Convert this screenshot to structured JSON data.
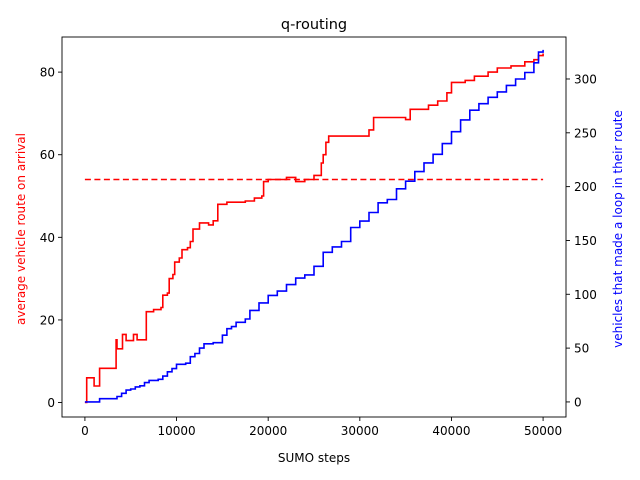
{
  "chart_data": {
    "type": "line",
    "title": "q-routing",
    "xlabel": "SUMO steps",
    "ylabel_left": "average vehicle route on arrival",
    "ylabel_right": "vehicles that made a loop in their route",
    "xlim": [
      -2500,
      52500
    ],
    "ylim_left": [
      -3.5,
      88.5
    ],
    "ylim_right": [
      -14,
      339
    ],
    "x_ticks": [
      0,
      10000,
      20000,
      30000,
      40000,
      50000
    ],
    "y_ticks_left": [
      0,
      20,
      40,
      60,
      80
    ],
    "y_ticks_right": [
      0,
      50,
      100,
      150,
      200,
      250,
      300
    ],
    "colors": {
      "left_axis": "#ff0000",
      "right_axis": "#0000ff"
    },
    "grid": false,
    "series": [
      {
        "axis": "left",
        "color": "#ff0000",
        "style": "step",
        "points": [
          [
            0,
            0
          ],
          [
            200,
            6
          ],
          [
            900,
            6
          ],
          [
            1000,
            4
          ],
          [
            1500,
            4
          ],
          [
            1600,
            8.3
          ],
          [
            3300,
            8.3
          ],
          [
            3400,
            15.2
          ],
          [
            3500,
            13
          ],
          [
            4000,
            13
          ],
          [
            4100,
            16.5
          ],
          [
            4500,
            15
          ],
          [
            5000,
            15
          ],
          [
            5300,
            16.5
          ],
          [
            5700,
            15.2
          ],
          [
            6500,
            15.2
          ],
          [
            6700,
            22
          ],
          [
            7500,
            22.5
          ],
          [
            8300,
            23
          ],
          [
            8500,
            26
          ],
          [
            9000,
            26.5
          ],
          [
            9200,
            30
          ],
          [
            9600,
            31
          ],
          [
            9800,
            34
          ],
          [
            10300,
            35
          ],
          [
            10600,
            37
          ],
          [
            11200,
            37.5
          ],
          [
            11500,
            39
          ],
          [
            11800,
            42
          ],
          [
            12500,
            43.5
          ],
          [
            13500,
            43
          ],
          [
            14000,
            44
          ],
          [
            14500,
            48
          ],
          [
            15500,
            48.5
          ],
          [
            16500,
            48.5
          ],
          [
            17500,
            48.8
          ],
          [
            18500,
            49.5
          ],
          [
            19300,
            50
          ],
          [
            19500,
            53.5
          ],
          [
            20000,
            54
          ],
          [
            21000,
            54
          ],
          [
            22000,
            54.5
          ],
          [
            23000,
            53.5
          ],
          [
            24000,
            54
          ],
          [
            25000,
            55
          ],
          [
            25800,
            58
          ],
          [
            26000,
            60
          ],
          [
            26300,
            63
          ],
          [
            26600,
            64.5
          ],
          [
            28000,
            64.5
          ],
          [
            29500,
            64.5
          ],
          [
            31000,
            66
          ],
          [
            31500,
            69
          ],
          [
            33000,
            69
          ],
          [
            34000,
            69
          ],
          [
            35000,
            68.5
          ],
          [
            35500,
            71
          ],
          [
            36500,
            71
          ],
          [
            37500,
            72
          ],
          [
            38500,
            73
          ],
          [
            39500,
            75
          ],
          [
            40000,
            77.5
          ],
          [
            41500,
            78
          ],
          [
            42500,
            79
          ],
          [
            44000,
            80
          ],
          [
            45000,
            81
          ],
          [
            46500,
            81.5
          ],
          [
            48000,
            82.5
          ],
          [
            49000,
            83
          ],
          [
            49500,
            84
          ],
          [
            50000,
            84.5
          ]
        ]
      },
      {
        "axis": "left",
        "color": "#ff0000",
        "style": "dashed",
        "points": [
          [
            0,
            54
          ],
          [
            50000,
            54
          ]
        ]
      },
      {
        "axis": "right",
        "color": "#0000ff",
        "style": "step",
        "points": [
          [
            0,
            0
          ],
          [
            1500,
            0
          ],
          [
            1600,
            3
          ],
          [
            3000,
            3
          ],
          [
            3500,
            5
          ],
          [
            4000,
            8
          ],
          [
            4500,
            11
          ],
          [
            5000,
            12
          ],
          [
            5500,
            14
          ],
          [
            6000,
            15
          ],
          [
            6500,
            18
          ],
          [
            7000,
            20
          ],
          [
            8000,
            21
          ],
          [
            8500,
            24
          ],
          [
            9000,
            28
          ],
          [
            9500,
            31
          ],
          [
            10000,
            35
          ],
          [
            11000,
            36
          ],
          [
            11500,
            42
          ],
          [
            12000,
            45
          ],
          [
            12500,
            50
          ],
          [
            13000,
            54
          ],
          [
            14000,
            55
          ],
          [
            15000,
            62
          ],
          [
            15500,
            68
          ],
          [
            16000,
            70
          ],
          [
            16500,
            74
          ],
          [
            17500,
            77
          ],
          [
            18000,
            85
          ],
          [
            19000,
            92
          ],
          [
            20000,
            99
          ],
          [
            21000,
            103
          ],
          [
            22000,
            109
          ],
          [
            23000,
            115
          ],
          [
            24000,
            118
          ],
          [
            25000,
            126
          ],
          [
            26000,
            139
          ],
          [
            27000,
            144
          ],
          [
            28000,
            149
          ],
          [
            29000,
            162
          ],
          [
            30000,
            168
          ],
          [
            31000,
            176
          ],
          [
            32000,
            185
          ],
          [
            33000,
            188
          ],
          [
            34000,
            198
          ],
          [
            35000,
            205
          ],
          [
            36000,
            214
          ],
          [
            37000,
            222
          ],
          [
            38000,
            230
          ],
          [
            39000,
            240
          ],
          [
            40000,
            251
          ],
          [
            41000,
            262
          ],
          [
            42000,
            271
          ],
          [
            43000,
            277
          ],
          [
            44000,
            283
          ],
          [
            45000,
            288
          ],
          [
            46000,
            294
          ],
          [
            47000,
            300
          ],
          [
            48000,
            306
          ],
          [
            49000,
            315
          ],
          [
            49500,
            325
          ],
          [
            50000,
            327
          ]
        ]
      }
    ]
  }
}
